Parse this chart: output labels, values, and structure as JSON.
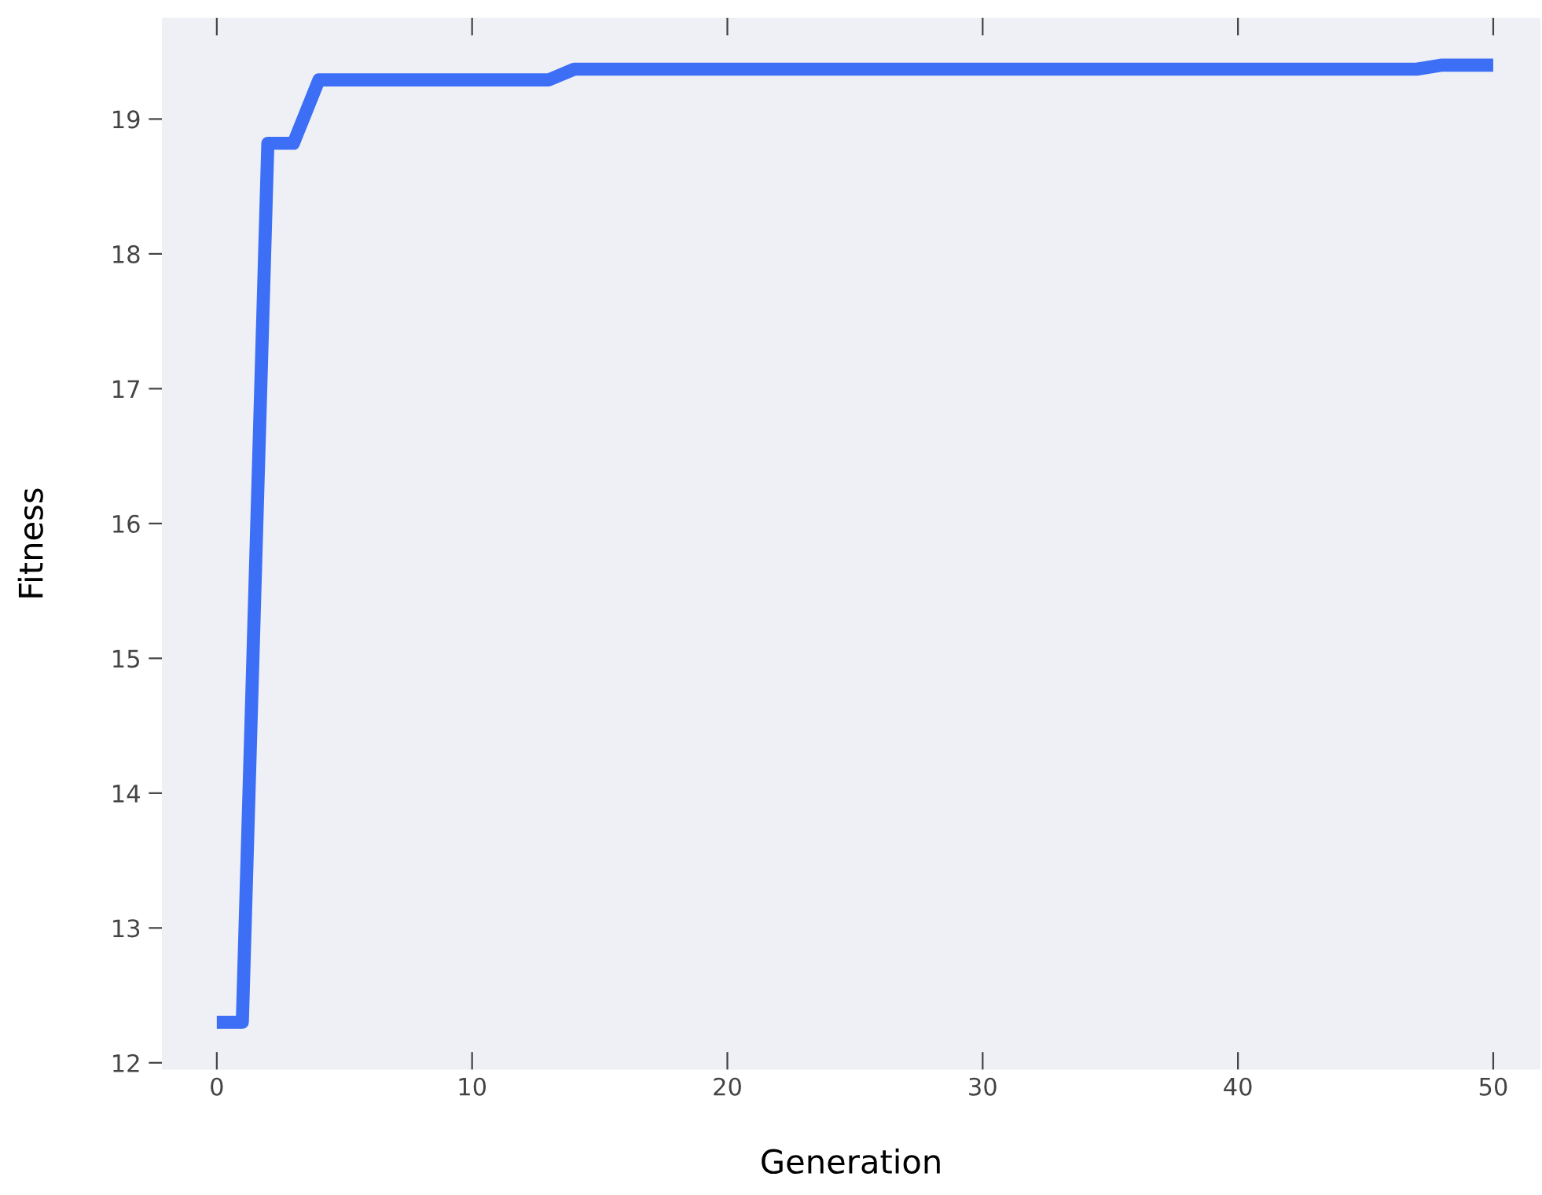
{
  "chart_data": {
    "type": "line",
    "xlabel": "Generation",
    "ylabel": "Fitness",
    "series": [
      {
        "color": "#3c6ef6",
        "x": [
          0,
          1,
          2,
          3,
          4,
          13,
          14,
          47,
          48,
          50
        ],
        "values": [
          12.3,
          12.3,
          18.82,
          18.82,
          19.29,
          19.29,
          19.37,
          19.37,
          19.4,
          19.4
        ]
      }
    ],
    "xlim": [
      -2.15,
      51.85
    ],
    "ylim": [
      11.95,
      19.75
    ],
    "xticks": [
      0,
      10,
      20,
      30,
      40,
      50
    ],
    "yticks": [
      12,
      13,
      14,
      15,
      16,
      17,
      18,
      19
    ],
    "grid": false,
    "legend": false,
    "marker": "none",
    "line_style": "solid"
  }
}
